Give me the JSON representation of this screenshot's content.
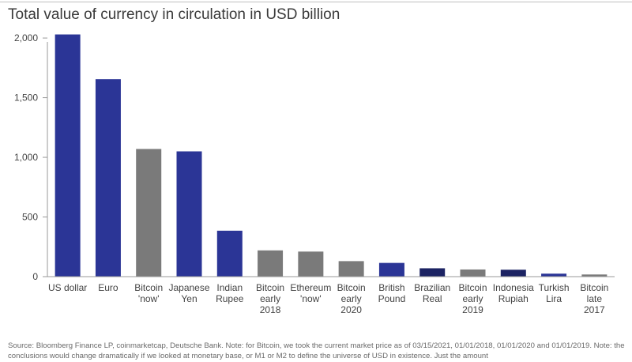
{
  "title": "Total value of currency in circulation in USD billion",
  "source_note": "Source: Bloomberg Finance LP, coinmarketcap, Deutsche Bank. Note: for Bitcoin, we took the current market price as of 03/15/2021, 01/01/2018, 01/01/2020 and 01/01/2019. Note: the conclusions would change dramatically if we looked at monetary base, or M1 or M2 to define the universe of USD in existence. Just the amount",
  "colors": {
    "currency": "#2b3596",
    "crypto": "#7a7a7a",
    "dark": "#1c2363",
    "axis": "#999999",
    "grid_text": "#444444"
  },
  "chart_data": {
    "type": "bar",
    "title": "Total value of currency in circulation in USD billion",
    "xlabel": "",
    "ylabel": "",
    "ylim": [
      0,
      2100
    ],
    "yticks": [
      0,
      500,
      1000,
      1500,
      2000
    ],
    "ytick_labels": [
      "0",
      "500",
      "1,000",
      "1,500",
      "2,000"
    ],
    "grid": false,
    "categories": [
      [
        "US dollar"
      ],
      [
        "Euro"
      ],
      [
        "Bitcoin",
        "'now'"
      ],
      [
        "Japanese",
        "Yen"
      ],
      [
        "Indian",
        "Rupee"
      ],
      [
        "Bitcoin",
        "early",
        "2018"
      ],
      [
        "Ethereum",
        "'now'"
      ],
      [
        "Bitcoin",
        "early",
        "2020"
      ],
      [
        "British",
        "Pound"
      ],
      [
        "Brazilian",
        "Real"
      ],
      [
        "Bitcoin",
        "early",
        "2019"
      ],
      [
        "Indonesia",
        "Rupiah"
      ],
      [
        "Turkish",
        "Lira"
      ],
      [
        "Bitcoin",
        "late",
        "2017"
      ]
    ],
    "values": [
      2030,
      1655,
      1070,
      1050,
      385,
      220,
      210,
      130,
      115,
      70,
      60,
      58,
      25,
      18
    ],
    "bar_color_keys": [
      "currency",
      "currency",
      "crypto",
      "currency",
      "currency",
      "crypto",
      "crypto",
      "crypto",
      "currency",
      "dark",
      "crypto",
      "dark",
      "currency",
      "crypto"
    ]
  }
}
